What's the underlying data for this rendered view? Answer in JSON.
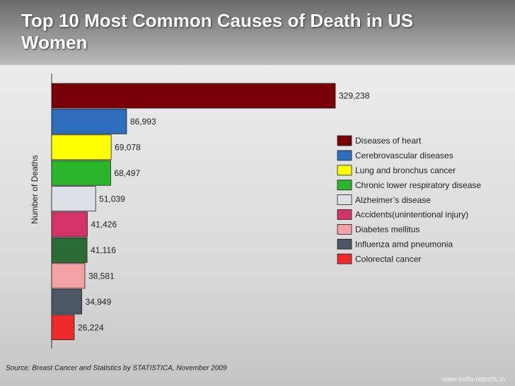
{
  "chart_data": {
    "type": "bar",
    "orientation": "horizontal",
    "title": "Top 10 Most Common Causes of Death in US Women",
    "y_label": "Number of Deaths",
    "categories": [
      "Diseases of heart",
      "Cerebrovascular diseases",
      "Lung and bronchus cancer",
      "Chronic lower respiratory disease",
      "Alzheimer’s disease",
      "Accidents(unintentional injury)",
      null,
      "Diabetes mellitus",
      "Influenza amd pneumonia",
      "Colorectal cancer"
    ],
    "values": [
      329238,
      86993,
      69078,
      68497,
      51039,
      41426,
      41116,
      38581,
      34949,
      26224
    ],
    "value_labels": [
      "329,238",
      "86,993",
      "69,078",
      "68,497",
      "51,039",
      "41,426",
      "41,116",
      "38,581",
      "34,949",
      "26,224"
    ],
    "colors": [
      "#7a0008",
      "#2c6dbd",
      "#ffff00",
      "#2bb52b",
      "#dde1e7",
      "#d4336a",
      "#2c6b36",
      "#f4a1a6",
      "#4b5663",
      "#ef2a2a"
    ],
    "source": "Source: Breast Cancer and Statistics by STATISTICA, November 2009",
    "watermark": "www.india-reports.in"
  }
}
